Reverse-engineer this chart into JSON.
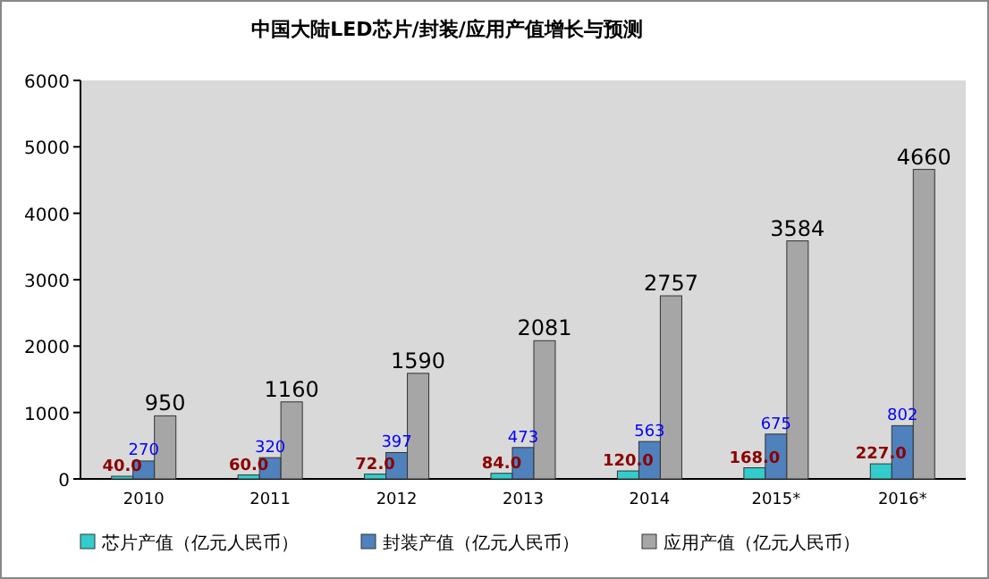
{
  "chart_data": {
    "type": "bar",
    "title": "中国大陆LED芯片/封装/应用产值增长与预测",
    "categories": [
      "2010",
      "2011",
      "2012",
      "2013",
      "2014",
      "2015*",
      "2016*"
    ],
    "series": [
      {
        "name": "芯片产值（亿元人民币）",
        "color": "#33cccc",
        "values": [
          40,
          60,
          72,
          84,
          120,
          168,
          227
        ],
        "value_labels": [
          "40.0",
          "60.0",
          "72.0",
          "84.0",
          "120.0",
          "168.0",
          "227.0"
        ]
      },
      {
        "name": "封装产值（亿元人民币）",
        "color": "#4f81bd",
        "values": [
          270,
          320,
          397,
          473,
          563,
          675,
          802
        ],
        "value_labels": [
          "270",
          "320",
          "397",
          "473",
          "563",
          "675",
          "802"
        ]
      },
      {
        "name": "应用产值（亿元人民币）",
        "color": "#a6a6a6",
        "values": [
          950,
          1160,
          1590,
          2081,
          2757,
          3584,
          4660
        ],
        "value_labels": [
          "950",
          "1160",
          "1590",
          "2081",
          "2757",
          "3584",
          "4660"
        ]
      }
    ],
    "ylim": [
      0,
      6000
    ],
    "yticks": [
      0,
      1000,
      2000,
      3000,
      4000,
      5000,
      6000
    ],
    "grid": false,
    "legend": "bottom"
  }
}
